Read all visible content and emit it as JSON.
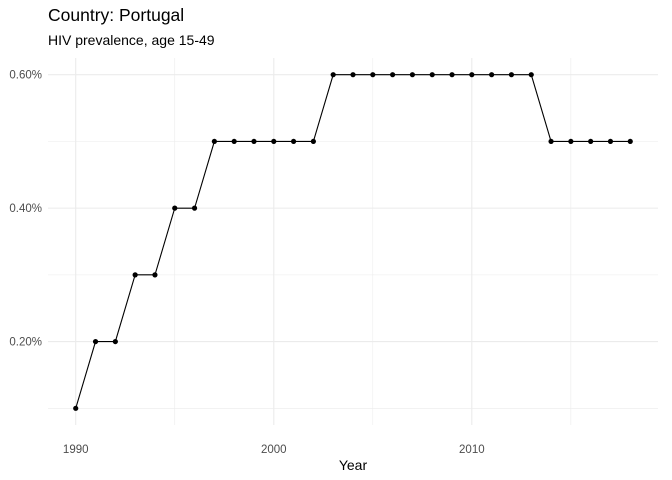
{
  "chart_data": {
    "type": "line",
    "title": "Country: Portugal",
    "subtitle": "HIV prevalence, age 15-49",
    "xlabel": "Year",
    "ylabel": "",
    "x": [
      1990,
      1991,
      1992,
      1993,
      1994,
      1995,
      1996,
      1997,
      1998,
      1999,
      2000,
      2001,
      2002,
      2003,
      2004,
      2005,
      2006,
      2007,
      2008,
      2009,
      2010,
      2011,
      2012,
      2013,
      2014,
      2015,
      2016,
      2017,
      2018
    ],
    "series": [
      {
        "values": [
          0.1,
          0.2,
          0.2,
          0.3,
          0.3,
          0.4,
          0.4,
          0.5,
          0.5,
          0.5,
          0.5,
          0.5,
          0.5,
          0.6,
          0.6,
          0.6,
          0.6,
          0.6,
          0.6,
          0.6,
          0.6,
          0.6,
          0.6,
          0.6,
          0.5,
          0.5,
          0.5,
          0.5,
          0.5
        ],
        "color": "#000000",
        "markers": true
      }
    ],
    "xlim": [
      1988.6,
      2019.4
    ],
    "ylim": [
      0.075,
      0.625
    ],
    "x_ticks": [
      1990,
      2000,
      2010
    ],
    "x_tick_labels": [
      "1990",
      "2000",
      "2010"
    ],
    "y_ticks": [
      0.2,
      0.4,
      0.6
    ],
    "y_tick_labels": [
      "0.20%",
      "0.40%",
      "0.60%"
    ],
    "x_minor_ticks": [
      1995,
      2005,
      2015
    ],
    "y_minor_ticks": [
      0.1,
      0.3,
      0.5
    ],
    "grid": true,
    "grid_color": "#ebebeb",
    "legend": "none",
    "theme": "minimal"
  }
}
